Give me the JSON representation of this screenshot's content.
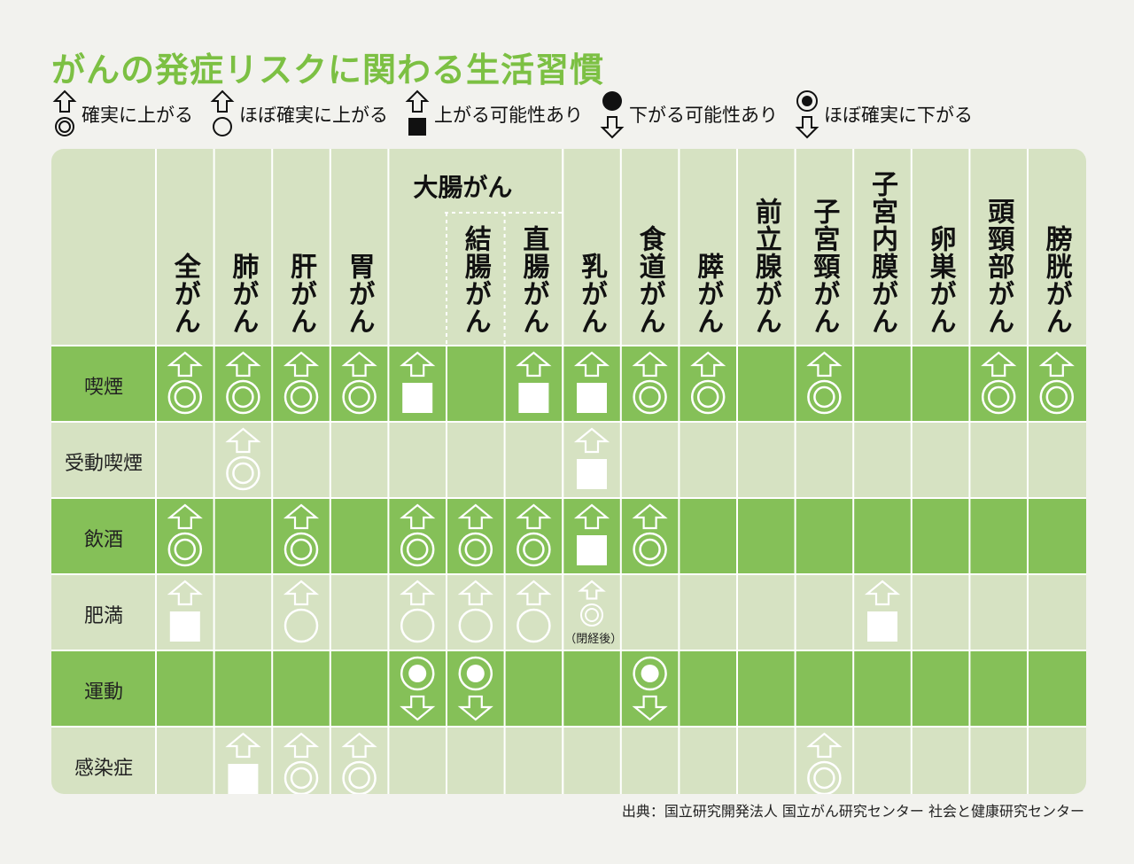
{
  "title": "がんの発症リスクに関わる生活習慣",
  "legend": [
    {
      "key": "up_double",
      "label": "確実に上がる"
    },
    {
      "key": "up_circle",
      "label": "ほぼ確実に上がる"
    },
    {
      "key": "up_square",
      "label": "上がる可能性あり"
    },
    {
      "key": "down_dot",
      "label": "下がる可能性あり"
    },
    {
      "key": "down_bullseye",
      "label": "ほぼ確実に下がる"
    }
  ],
  "group_header": "大腸がん",
  "columns": [
    "全がん",
    "肺がん",
    "肝がん",
    "胃がん",
    "",
    "結腸がん",
    "直腸がん",
    "乳がん",
    "食道がん",
    "膵がん",
    "前立腺がん",
    "子宮頸がん",
    "子宮内膜がん",
    "卵巣がん",
    "頭頸部がん",
    "膀胱がん"
  ],
  "rows": [
    {
      "label": "喫煙",
      "highlight": true,
      "cells": [
        "up_double",
        "up_double",
        "up_double",
        "up_double",
        "up_square",
        "",
        "up_square",
        "up_square",
        "up_double",
        "up_double",
        "",
        "up_double",
        "",
        "",
        "up_double",
        "up_double"
      ]
    },
    {
      "label": "受動喫煙",
      "highlight": false,
      "cells": [
        "",
        "up_double",
        "",
        "",
        "",
        "",
        "",
        "up_square",
        "",
        "",
        "",
        "",
        "",
        "",
        "",
        ""
      ]
    },
    {
      "label": "飲酒",
      "highlight": true,
      "cells": [
        "up_double",
        "",
        "up_double",
        "",
        "up_double",
        "up_double",
        "up_double",
        "up_square",
        "up_double",
        "",
        "",
        "",
        "",
        "",
        "",
        ""
      ]
    },
    {
      "label": "肥満",
      "highlight": false,
      "cells": [
        "up_square",
        "",
        "up_circle",
        "",
        "up_circle",
        "up_circle",
        "up_circle",
        "up_double_small",
        "",
        "",
        "",
        "",
        "up_square",
        "",
        "",
        ""
      ]
    },
    {
      "label": "運動",
      "highlight": true,
      "cells": [
        "",
        "",
        "",
        "",
        "down_dot",
        "down_dot",
        "",
        "",
        "down_dot",
        "",
        "",
        "",
        "",
        "",
        "",
        ""
      ]
    },
    {
      "label": "感染症",
      "highlight": false,
      "cells": [
        "",
        "up_square",
        "up_double",
        "up_double",
        "",
        "",
        "",
        "",
        "",
        "",
        "",
        "up_double",
        "",
        "",
        "",
        ""
      ]
    }
  ],
  "notes": {
    "menopause": "（閉経後）"
  },
  "source": "出典：国立研究開発法人 国立がん研究センター 社会と健康研究センター",
  "colors": {
    "accent": "#7cc043",
    "row_green": "#85c058",
    "row_light": "#d6e2c2",
    "line": "#ffffff"
  }
}
